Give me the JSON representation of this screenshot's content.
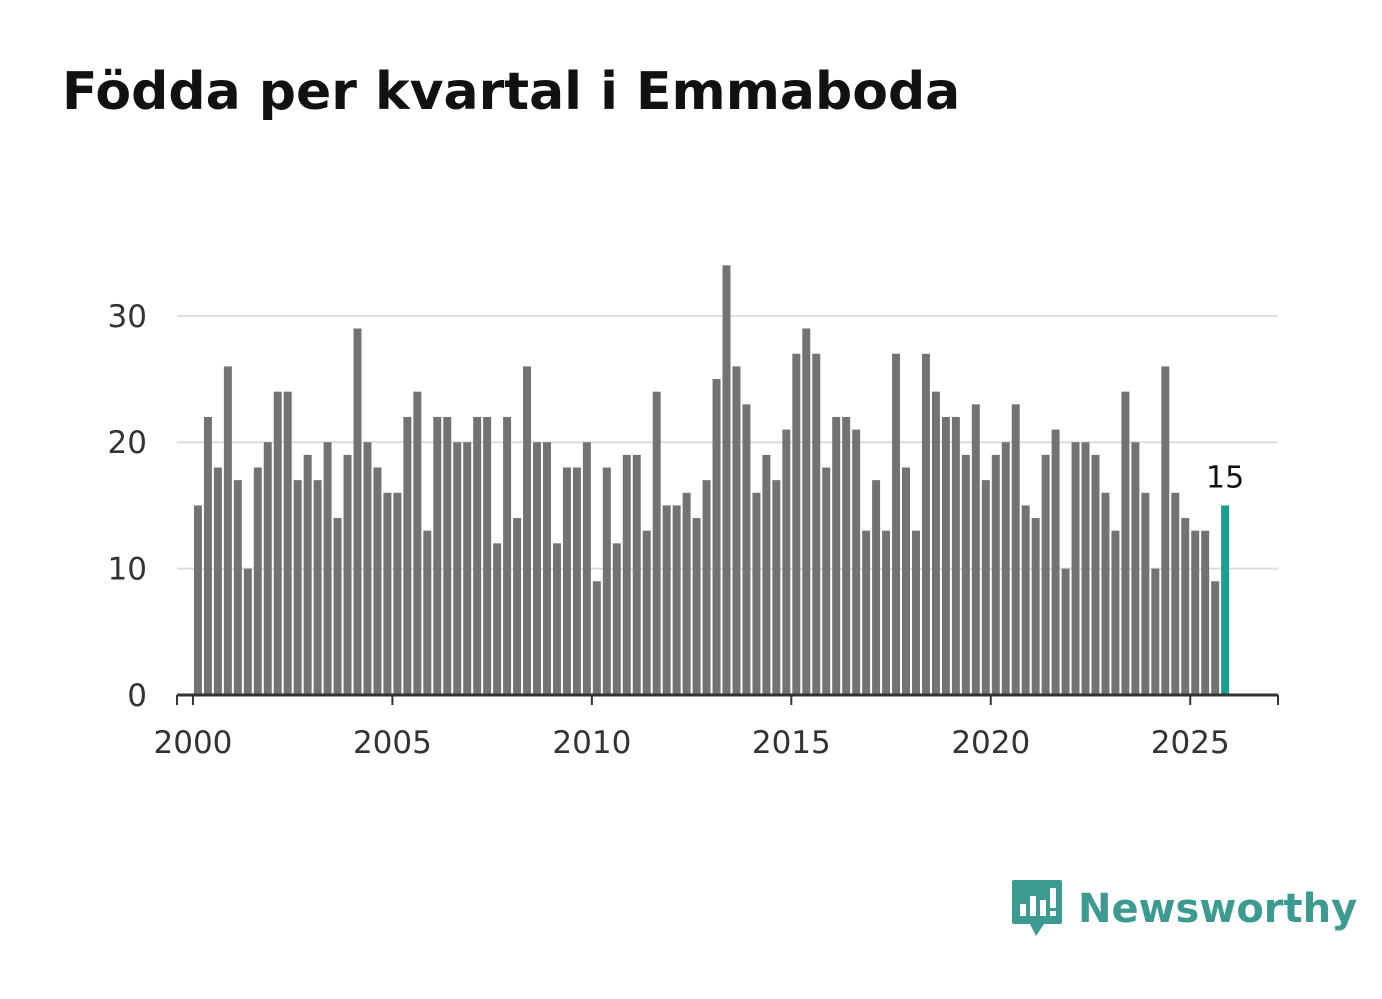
{
  "title": "Födda per kvartal i Emmaboda",
  "brand": {
    "name": "Newsworthy",
    "color": "#3d9a91"
  },
  "colors": {
    "bar": "#737373",
    "highlight": "#1a9e8f",
    "grid": "#dddddd",
    "axis": "#333333"
  },
  "chart_data": {
    "type": "bar",
    "title": "Födda per kvartal i Emmaboda",
    "xlabel": "",
    "ylabel": "",
    "ylim": [
      0,
      36
    ],
    "xlim": [
      1999.6,
      2027.2
    ],
    "yticks": [
      0,
      10,
      20,
      30
    ],
    "xticks": [
      2000,
      2005,
      2010,
      2015,
      2020,
      2025
    ],
    "start_year": 2000,
    "periods_per_year": 4,
    "values": [
      15,
      22,
      18,
      26,
      17,
      10,
      18,
      20,
      24,
      24,
      17,
      19,
      17,
      20,
      14,
      19,
      29,
      20,
      18,
      16,
      16,
      22,
      24,
      13,
      22,
      22,
      20,
      20,
      22,
      22,
      12,
      22,
      14,
      26,
      20,
      20,
      12,
      18,
      18,
      20,
      9,
      18,
      12,
      19,
      19,
      13,
      24,
      15,
      15,
      16,
      14,
      17,
      25,
      34,
      26,
      23,
      16,
      19,
      17,
      21,
      27,
      29,
      27,
      18,
      22,
      22,
      21,
      13,
      17,
      13,
      27,
      18,
      13,
      27,
      24,
      22,
      22,
      19,
      23,
      17,
      19,
      20,
      23,
      15,
      14,
      19,
      21,
      10,
      20,
      20,
      19,
      16,
      13,
      24,
      20,
      16,
      10,
      26,
      16,
      14,
      13,
      13,
      9,
      15
    ],
    "highlight_index": 103,
    "annotation": {
      "label": "15",
      "index": 103
    }
  }
}
